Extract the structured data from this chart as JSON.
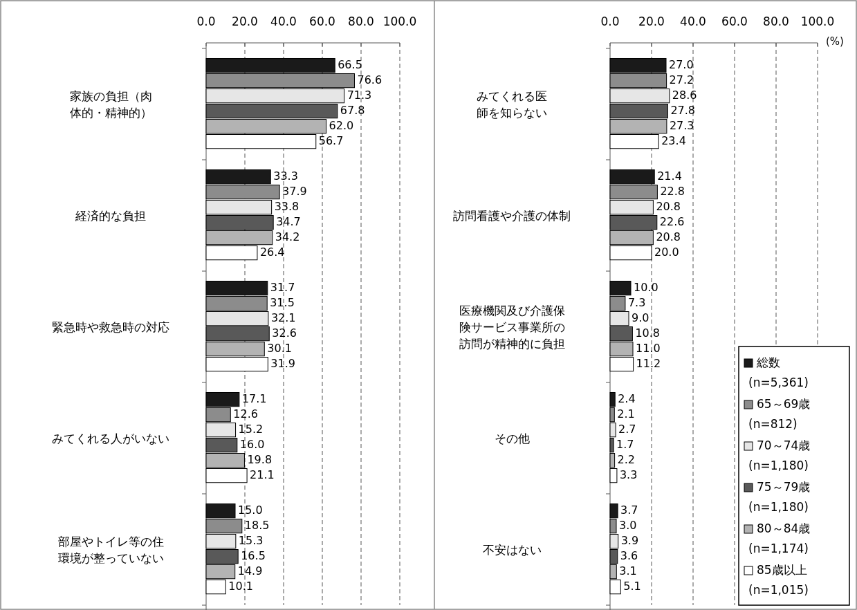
{
  "chart_data": [
    {
      "type": "bar",
      "orientation": "horizontal",
      "categories": [
        "家族の負担（肉体的・精神的）",
        "経済的な負担",
        "緊急時や救急時の対応",
        "みてくれる人がいない",
        "部屋やトイレ等の住環境が整っていない"
      ],
      "xlim": [
        0,
        100
      ],
      "xticks": [
        {
          "value": 0,
          "label": "0.0"
        },
        {
          "value": 20,
          "label": "20.0"
        },
        {
          "value": 40,
          "label": "40.0"
        },
        {
          "value": 60,
          "label": "60.0"
        },
        {
          "value": 80,
          "label": "80.0"
        },
        {
          "value": 100,
          "label": "100.0"
        }
      ],
      "grid": "x",
      "series": [
        {
          "color": "#1a1a1a",
          "values": [
            66.5,
            33.3,
            31.7,
            17.1,
            15.0
          ],
          "value_labels": [
            "66.5",
            "33.3",
            "31.7",
            "17.1",
            "15.0"
          ]
        },
        {
          "color": "#8c8c8c",
          "values": [
            76.6,
            37.9,
            31.5,
            12.6,
            18.5
          ],
          "value_labels": [
            "76.6",
            "37.9",
            "31.5",
            "12.6",
            "18.5"
          ]
        },
        {
          "color": "#e6e6e6",
          "values": [
            71.3,
            33.8,
            32.1,
            15.2,
            15.3
          ],
          "value_labels": [
            "71.3",
            "33.8",
            "32.1",
            "15.2",
            "15.3"
          ]
        },
        {
          "color": "#595959",
          "values": [
            67.8,
            34.7,
            32.6,
            16.0,
            16.5
          ],
          "value_labels": [
            "67.8",
            "34.7",
            "32.6",
            "16.0",
            "16.5"
          ]
        },
        {
          "color": "#b3b3b3",
          "values": [
            62.0,
            34.2,
            30.1,
            19.8,
            14.9
          ],
          "value_labels": [
            "62.0",
            "34.2",
            "30.1",
            "19.8",
            "14.9"
          ]
        },
        {
          "color": "#ffffff",
          "values": [
            56.7,
            26.4,
            31.9,
            21.1,
            10.1
          ],
          "value_labels": [
            "56.7",
            "26.4",
            "31.9",
            "21.1",
            "10.1"
          ]
        }
      ]
    },
    {
      "type": "bar",
      "orientation": "horizontal",
      "categories": [
        "みてくれる医師を知らない",
        "訪問看護や介護の体制",
        "医療機関及び介護保険サービス事業所の訪問が精神的に負担",
        "その他",
        "不安はない"
      ],
      "xlabel": "(%)",
      "xlim": [
        0,
        100
      ],
      "xticks": [
        {
          "value": 0,
          "label": "0.0"
        },
        {
          "value": 20,
          "label": "20.0"
        },
        {
          "value": 40,
          "label": "40.0"
        },
        {
          "value": 60,
          "label": "60.0"
        },
        {
          "value": 80,
          "label": "80.0"
        },
        {
          "value": 100,
          "label": "100.0"
        }
      ],
      "grid": "x",
      "legend": "bottom right",
      "series": [
        {
          "name": "総数\n(n=5,361)",
          "color": "#1a1a1a",
          "values": [
            27.0,
            21.4,
            10.0,
            2.4,
            3.7
          ],
          "value_labels": [
            "27.0",
            "21.4",
            "10.0",
            "2.4",
            "3.7"
          ]
        },
        {
          "name": "65～69歳\n(n=812)",
          "color": "#8c8c8c",
          "values": [
            27.2,
            22.8,
            7.3,
            2.1,
            3.0
          ],
          "value_labels": [
            "27.2",
            "22.8",
            "7.3",
            "2.1",
            "3.0"
          ]
        },
        {
          "name": "70～74歳\n(n=1,180)",
          "color": "#e6e6e6",
          "values": [
            28.6,
            20.8,
            9.0,
            2.7,
            3.9
          ],
          "value_labels": [
            "28.6",
            "20.8",
            "9.0",
            "2.7",
            "3.9"
          ]
        },
        {
          "name": "75～79歳\n(n=1,180)",
          "color": "#595959",
          "values": [
            27.8,
            22.6,
            10.8,
            1.7,
            3.6
          ],
          "value_labels": [
            "27.8",
            "22.6",
            "10.8",
            "1.7",
            "3.6"
          ]
        },
        {
          "name": "80～84歳\n(n=1,174)",
          "color": "#b3b3b3",
          "values": [
            27.3,
            20.8,
            11.0,
            2.2,
            3.1
          ],
          "value_labels": [
            "27.3",
            "20.8",
            "11.0",
            "2.2",
            "3.1"
          ]
        },
        {
          "name": "85歳以上\n(n=1,015)",
          "color": "#ffffff",
          "values": [
            23.4,
            20.0,
            11.2,
            3.3,
            5.1
          ],
          "value_labels": [
            "23.4",
            "20.0",
            "11.2",
            "3.3",
            "5.1"
          ]
        }
      ]
    }
  ]
}
